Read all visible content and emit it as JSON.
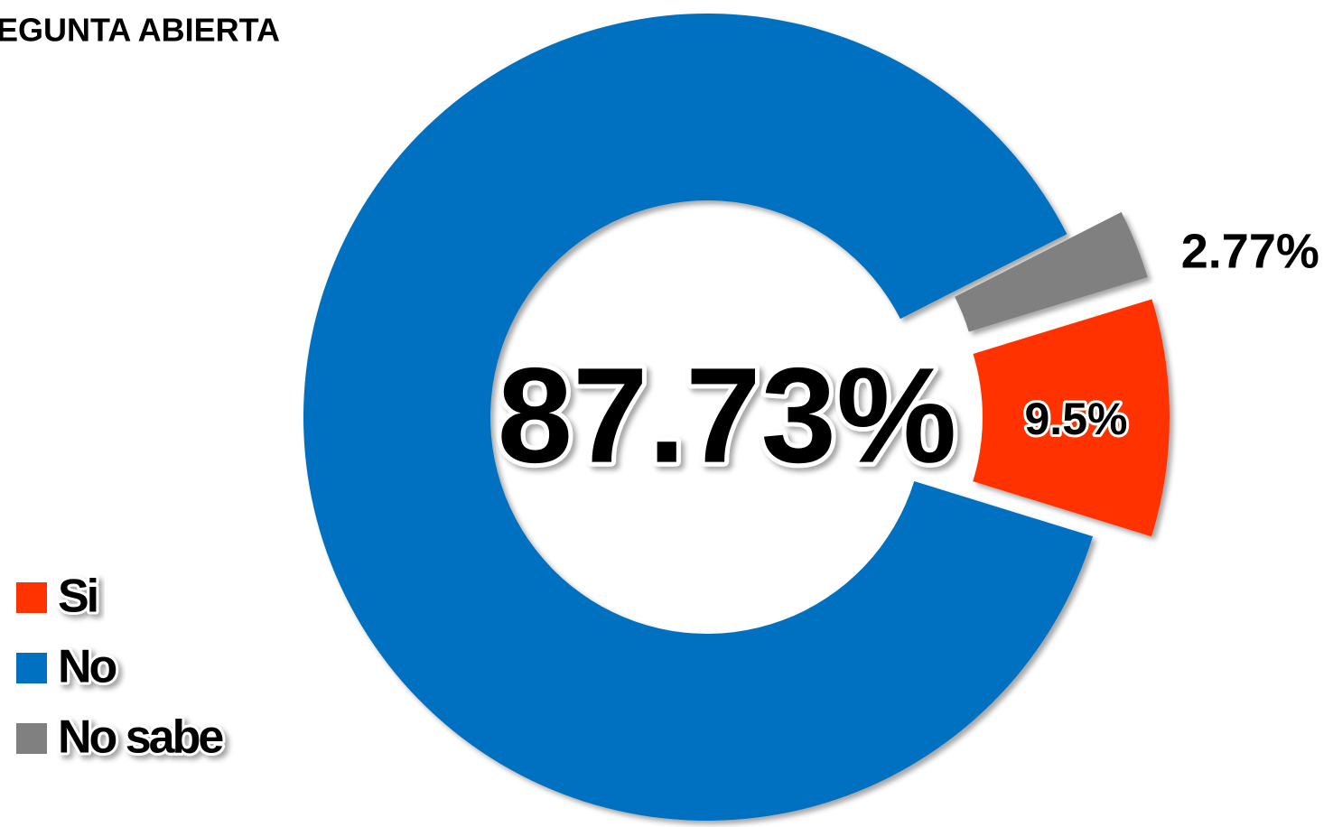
{
  "chart_data": {
    "type": "donut",
    "title": "EGUNTA ABIERTA",
    "categories": [
      "Si",
      "No",
      "No sabe"
    ],
    "values": [
      9.5,
      87.73,
      2.77
    ],
    "value_labels": [
      "9.5%",
      "87.73%",
      "2.77%"
    ],
    "colors": [
      "#ff3300",
      "#0070c0",
      "#808080"
    ],
    "legend": "bottom-left"
  }
}
